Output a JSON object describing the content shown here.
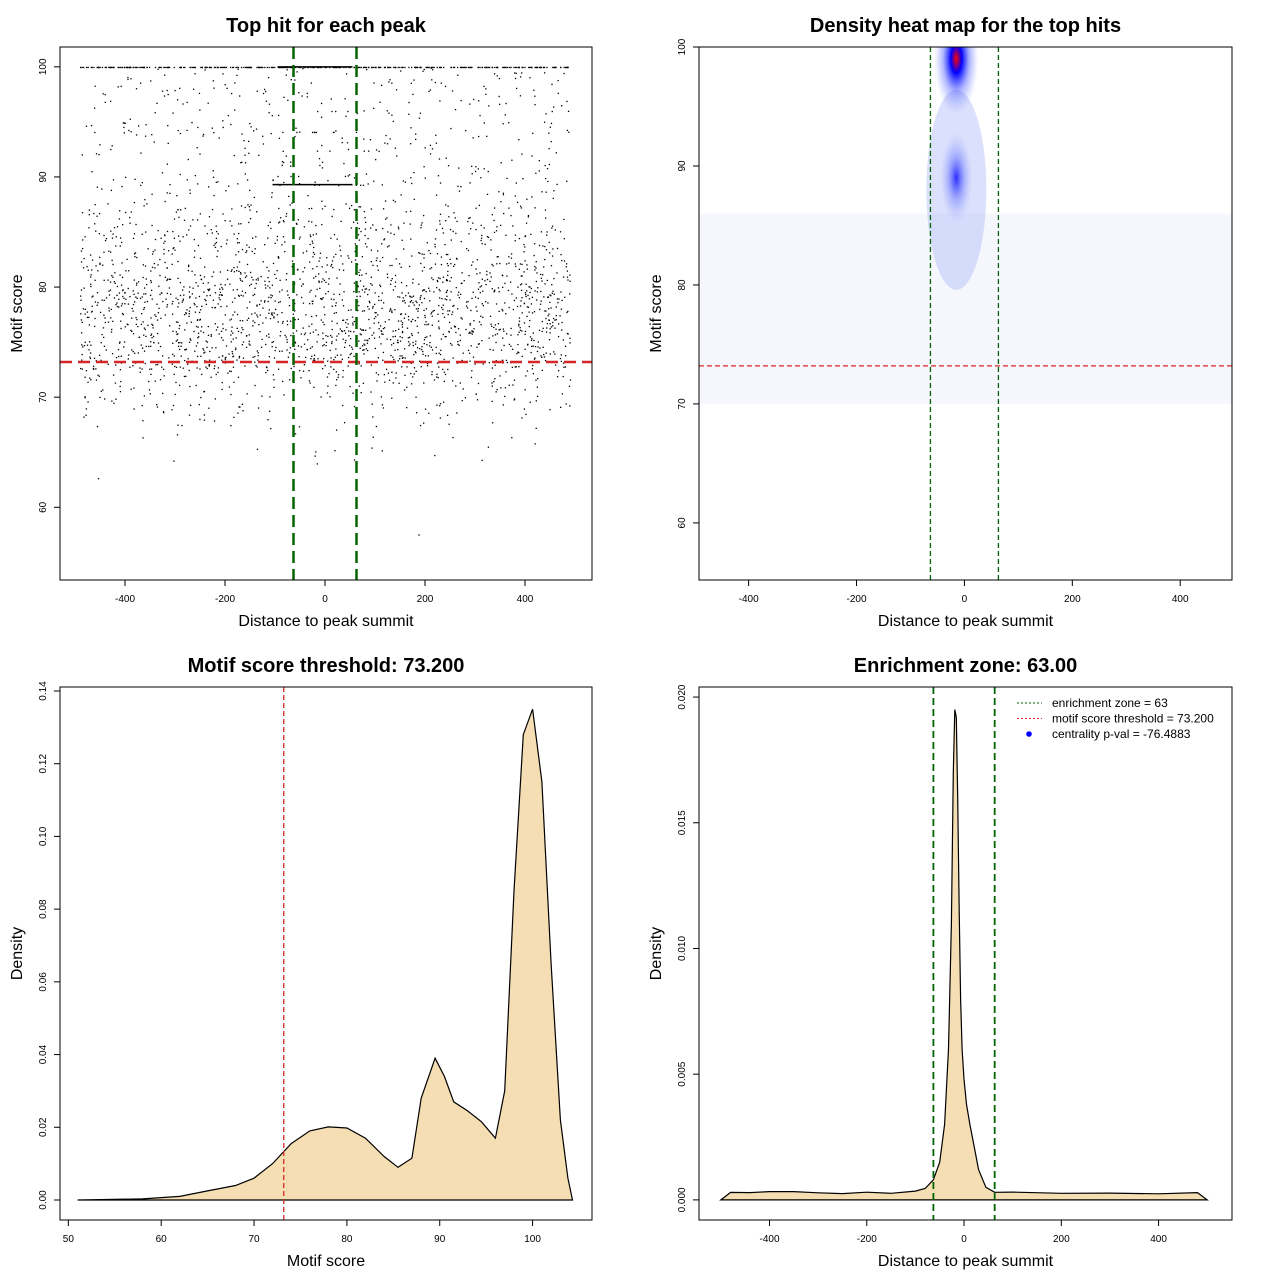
{
  "colors": {
    "threshold": "#d62728",
    "zone": "#006400",
    "fill": "#f5deb3",
    "point": "#000000",
    "legend_dot": "#0000ff"
  },
  "chart_data": [
    {
      "type": "scatter",
      "title": "Top hit for each peak",
      "xlabel": "Distance to peak summit",
      "ylabel": "Motif score",
      "xticks": [
        -400,
        -200,
        0,
        200,
        400
      ],
      "yticks": [
        60,
        70,
        80,
        90,
        100
      ],
      "xlim": [
        -530,
        534
      ],
      "ylim": [
        53.4,
        101.8
      ],
      "threshold": 73.2,
      "enrichment_zone": 63,
      "n_points": 3000
    },
    {
      "type": "heatmap",
      "title": "Density heat map for the top hits",
      "xlabel": "Distance to peak summit",
      "ylabel": "Motif score",
      "xticks": [
        -400,
        -200,
        0,
        200,
        400
      ],
      "yticks": [
        60,
        70,
        80,
        90,
        100
      ],
      "xlim": [
        -492,
        496
      ],
      "ylim": [
        55.2,
        100
      ],
      "threshold": 73.2,
      "enrichment_zone": 63,
      "hotspots": [
        {
          "x": -15,
          "y": 99,
          "intensity": 1.0
        },
        {
          "x": -15,
          "y": 89,
          "intensity": 0.55
        }
      ]
    },
    {
      "type": "area",
      "title": "Motif score threshold: 73.200",
      "xlabel": "Motif score",
      "ylabel": "Density",
      "xticks": [
        50,
        60,
        70,
        80,
        90,
        100
      ],
      "yticks": [
        0,
        0.02,
        0.04,
        0.06,
        0.08,
        0.1,
        0.12,
        0.14
      ],
      "ytick_labels": [
        "0.00",
        "0.02",
        "0.04",
        "0.06",
        "0.08",
        "0.10",
        "0.12",
        "0.14"
      ],
      "xlim": [
        49.1,
        106.4
      ],
      "ylim": [
        -0.0055,
        0.1411
      ],
      "threshold": 73.2,
      "x": [
        51,
        58,
        62,
        65,
        68,
        70,
        72,
        74,
        76,
        78,
        80,
        82,
        84,
        85.5,
        87,
        88,
        89.5,
        90.5,
        91.5,
        93,
        94.5,
        96,
        97,
        98,
        99,
        100,
        101,
        102,
        103,
        103.8,
        104.3
      ],
      "y": [
        0,
        0.0003,
        0.001,
        0.0025,
        0.004,
        0.006,
        0.01,
        0.0155,
        0.019,
        0.0201,
        0.0198,
        0.017,
        0.012,
        0.009,
        0.0115,
        0.028,
        0.039,
        0.034,
        0.027,
        0.0245,
        0.0215,
        0.017,
        0.03,
        0.085,
        0.128,
        0.135,
        0.115,
        0.065,
        0.022,
        0.006,
        0
      ]
    },
    {
      "type": "area",
      "title": "Enrichment zone: 63.00",
      "xlabel": "Distance to peak summit",
      "ylabel": "Density",
      "xticks": [
        -400,
        -200,
        0,
        200,
        400
      ],
      "yticks": [
        0,
        0.005,
        0.01,
        0.015,
        0.02
      ],
      "ytick_labels": [
        "0.000",
        "0.005",
        "0.010",
        "0.015",
        "0.020"
      ],
      "xlim": [
        -545,
        551
      ],
      "ylim": [
        -0.0008,
        0.0204
      ],
      "enrichment_zone": 63,
      "x": [
        -500,
        -480,
        -440,
        -400,
        -350,
        -300,
        -250,
        -200,
        -150,
        -100,
        -80,
        -63,
        -50,
        -40,
        -32,
        -26,
        -22,
        -19,
        -16,
        -13,
        -10,
        -7,
        -4,
        0,
        5,
        12,
        20,
        30,
        45,
        63,
        100,
        200,
        300,
        400,
        480,
        500
      ],
      "y": [
        0,
        0.0003,
        0.0003,
        0.0003,
        0.0003,
        0.0003,
        0.0003,
        0.0003,
        0.0003,
        0.0004,
        0.0005,
        0.0008,
        0.0015,
        0.003,
        0.006,
        0.011,
        0.017,
        0.0195,
        0.0192,
        0.016,
        0.0115,
        0.008,
        0.006,
        0.0048,
        0.0038,
        0.003,
        0.0022,
        0.0012,
        0.0005,
        0.0003,
        0.0003,
        0.0003,
        0.0003,
        0.0003,
        0.0003,
        0
      ]
    },
    {
      "legend": [
        {
          "label": "enrichment zone = 63",
          "color": "#006400",
          "style": "dotted"
        },
        {
          "label": "motif score threshold = 73.200",
          "color": "#d62728",
          "style": "dotted"
        },
        {
          "label": "centrality p-val = -76.4883",
          "color": "#0000ff",
          "style": "dot"
        }
      ]
    }
  ]
}
